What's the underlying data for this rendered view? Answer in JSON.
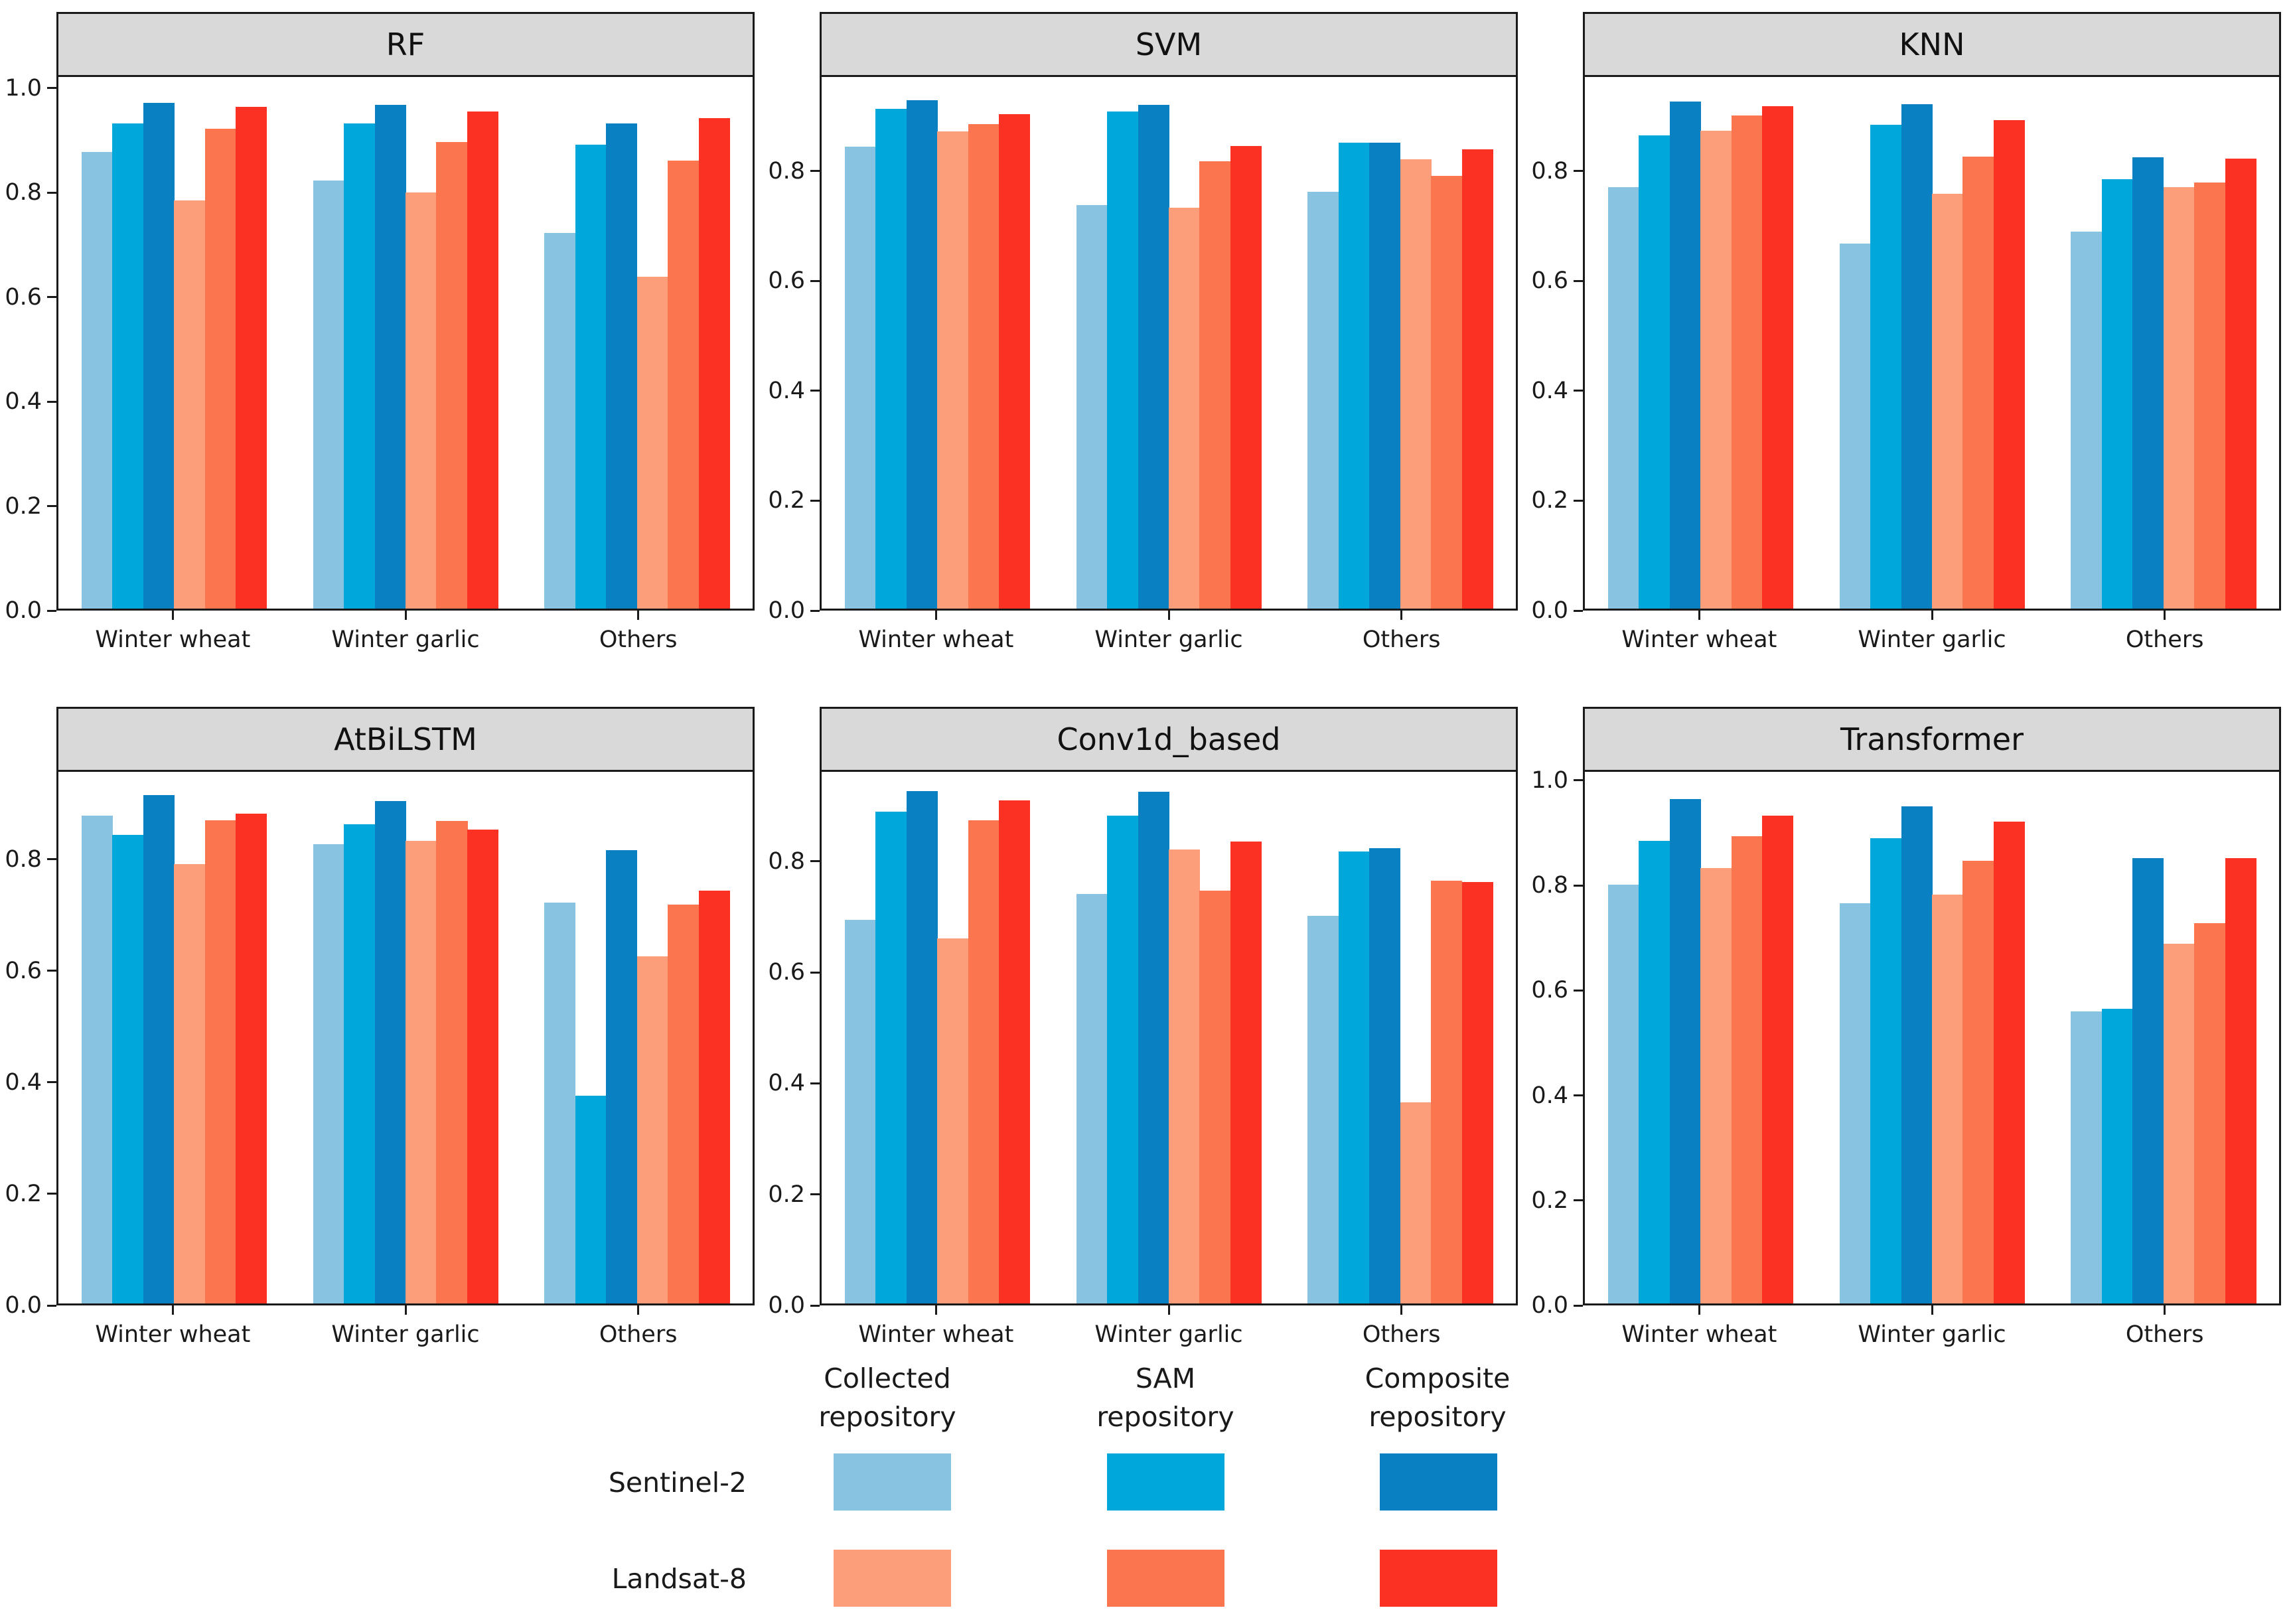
{
  "figure": {
    "background": "#ffffff",
    "panel_header_fill": "#d9d9d9",
    "axis_color": "#1a1a1a"
  },
  "legend": {
    "column_headers": [
      "Collected\nrepository",
      "SAM\nrepository",
      "Composite\nrepository"
    ],
    "row_labels": [
      "Sentinel-2",
      "Landsat-8"
    ],
    "swatch_colors": [
      [
        "#88c3e2",
        "#00a7da",
        "#0880c2"
      ],
      [
        "#fc9e79",
        "#fb764e",
        "#fb3123"
      ]
    ]
  },
  "chart_data": {
    "type": "bar",
    "categories": [
      "Winter wheat",
      "Winter garlic",
      "Others"
    ],
    "series_order": [
      "s2_collected",
      "s2_sam",
      "s2_composite",
      "l8_collected",
      "l8_sam",
      "l8_composite"
    ],
    "series_names": {
      "s2_collected": "Sentinel-2 Collected repository",
      "s2_sam": "Sentinel-2 SAM repository",
      "s2_composite": "Sentinel-2 Composite repository",
      "l8_collected": "Landsat-8 Collected repository",
      "l8_sam": "Landsat-8 SAM repository",
      "l8_composite": "Landsat-8 Composite repository"
    },
    "series_colors": {
      "s2_collected": "#88c3e2",
      "s2_sam": "#00a7da",
      "s2_composite": "#0880c2",
      "l8_collected": "#fc9e79",
      "l8_sam": "#fb764e",
      "l8_composite": "#fb3123"
    },
    "grid": false,
    "legend_position": "bottom",
    "charts": [
      {
        "title": "RF",
        "ylim": [
          0,
          1.025
        ],
        "yticks": [
          0.0,
          0.2,
          0.4,
          0.6,
          0.8,
          1.0
        ],
        "series": {
          "s2_collected": [
            0.88,
            0.826,
            0.724
          ],
          "s2_sam": [
            0.935,
            0.935,
            0.894
          ],
          "s2_composite": [
            0.975,
            0.971,
            0.936
          ],
          "l8_collected": [
            0.787,
            0.802,
            0.64
          ],
          "l8_sam": [
            0.925,
            0.899,
            0.864
          ],
          "l8_composite": [
            0.968,
            0.958,
            0.946
          ]
        }
      },
      {
        "title": "SVM",
        "ylim": [
          0,
          0.975
        ],
        "yticks": [
          0.0,
          0.2,
          0.4,
          0.6,
          0.8
        ],
        "series": {
          "s2_collected": [
            0.847,
            0.74,
            0.764
          ],
          "s2_sam": [
            0.917,
            0.912,
            0.854
          ],
          "s2_composite": [
            0.933,
            0.924,
            0.854
          ],
          "l8_collected": [
            0.875,
            0.735,
            0.824
          ],
          "l8_sam": [
            0.888,
            0.821,
            0.794
          ],
          "l8_composite": [
            0.907,
            0.848,
            0.842
          ]
        }
      },
      {
        "title": "KNN",
        "ylim": [
          0,
          0.975
        ],
        "yticks": [
          0.0,
          0.2,
          0.4,
          0.6,
          0.8
        ],
        "series": {
          "s2_collected": [
            0.773,
            0.67,
            0.691
          ],
          "s2_sam": [
            0.868,
            0.887,
            0.788
          ],
          "s2_composite": [
            0.93,
            0.925,
            0.828
          ],
          "l8_collected": [
            0.877,
            0.761,
            0.773
          ],
          "l8_sam": [
            0.904,
            0.829,
            0.781
          ],
          "l8_composite": [
            0.922,
            0.896,
            0.825
          ]
        }
      },
      {
        "title": "AtBiLSTM",
        "ylim": [
          0,
          0.96
        ],
        "yticks": [
          0.0,
          0.2,
          0.4,
          0.6,
          0.8
        ],
        "series": {
          "s2_collected": [
            0.881,
            0.829,
            0.724
          ],
          "s2_sam": [
            0.846,
            0.865,
            0.375
          ],
          "s2_composite": [
            0.918,
            0.907,
            0.818
          ],
          "l8_collected": [
            0.794,
            0.835,
            0.627
          ],
          "l8_sam": [
            0.872,
            0.871,
            0.72
          ],
          "l8_composite": [
            0.884,
            0.856,
            0.745
          ]
        }
      },
      {
        "title": "Conv1d_based",
        "ylim": [
          0,
          0.965
        ],
        "yticks": [
          0.0,
          0.2,
          0.4,
          0.6,
          0.8
        ],
        "series": {
          "s2_collected": [
            0.696,
            0.743,
            0.704
          ],
          "s2_sam": [
            0.893,
            0.885,
            0.821
          ],
          "s2_composite": [
            0.93,
            0.929,
            0.826
          ],
          "l8_collected": [
            0.663,
            0.824,
            0.365
          ],
          "l8_sam": [
            0.877,
            0.749,
            0.768
          ],
          "l8_composite": [
            0.913,
            0.838,
            0.765
          ]
        }
      },
      {
        "title": "Transformer",
        "ylim": [
          0,
          1.02
        ],
        "yticks": [
          0.0,
          0.2,
          0.4,
          0.6,
          0.8,
          1.0
        ],
        "series": {
          "s2_collected": [
            0.804,
            0.768,
            0.56
          ],
          "s2_sam": [
            0.888,
            0.893,
            0.566
          ],
          "s2_composite": [
            0.968,
            0.954,
            0.855
          ],
          "l8_collected": [
            0.836,
            0.784,
            0.69
          ],
          "l8_sam": [
            0.896,
            0.85,
            0.73
          ],
          "l8_composite": [
            0.936,
            0.924,
            0.855
          ]
        }
      }
    ]
  }
}
